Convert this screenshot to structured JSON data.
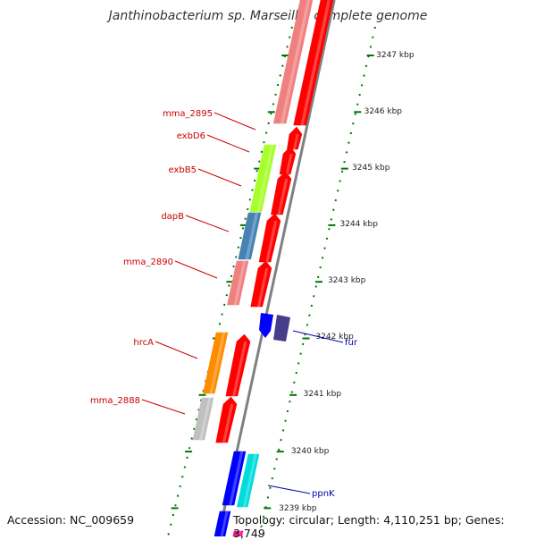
{
  "title": "Janthinobacterium sp. Marseille, complete genome",
  "footer": {
    "accession": "Accession: NC_009659",
    "topology": "Topology: circular; Length: 4,110,251 bp; Genes: 3,749"
  },
  "colors": {
    "backbone": "#808080",
    "tick": "#007700",
    "gene_label": "#cc0000",
    "gene_label_blue": "#0000aa",
    "red": "#ff0000",
    "salmon": "#f08080",
    "lime": "#a6ff2a",
    "steelblue": "#4682b4",
    "orange": "#ff8c00",
    "gray": "#c0c0c0",
    "blue": "#0000ff",
    "darkslate": "#483d8b",
    "cyan": "#00dcdc",
    "pink": "#ff1493"
  },
  "scale_labels": [
    "3247 kbp",
    "3246 kbp",
    "3245 kbp",
    "3244 kbp",
    "3243 kbp",
    "3242 kbp",
    "3241 kbp",
    "3240 kbp",
    "3239 kbp"
  ],
  "gene_labels_left": [
    "mma_2895",
    "exbD6",
    "exbB5",
    "dapB",
    "mma_2890",
    "hrcA",
    "mma_2888"
  ],
  "gene_labels_right": [
    "fur",
    "ppnK"
  ]
}
